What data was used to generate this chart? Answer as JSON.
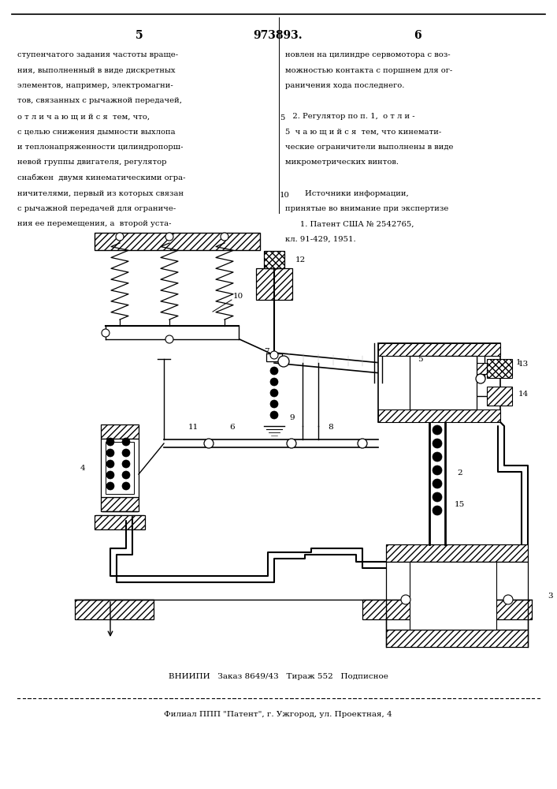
{
  "page_width": 7.07,
  "page_height": 10.0,
  "bg_color": "#ffffff",
  "header_num_left": "5",
  "header_title": "973893.",
  "header_num_right": "6",
  "text_left": [
    "ступенчатого задания частоты враще-",
    "ния, выполненный в виде дискретных",
    "элементов, например, электромагни-",
    "тов, связанных с рычажной передачей,",
    "о т л и ч а ю щ и й с я  тем, что,",
    "с целью снижения дымности выхлопа",
    "и теплонапряженности цилиндропорш-",
    "невой группы двигателя, регулятор",
    "снабжен  двумя кинематическими огра-",
    "ничителями, первый из которых связан",
    "с рычажной передачей для ограниче-",
    "ния ее перемещения, а  второй уста-"
  ],
  "text_right": [
    "новлен на цилиндре сервомотора с воз-",
    "можностью контакта с поршнем для ог-",
    "раничения хода последнего.",
    "",
    "   2. Регулятор по п. 1,  о т л и -",
    "5  ч а ю щ и й с я  тем, что кинемати-",
    "ческие ограничители выполнены в виде",
    "микрометрических винтов.",
    "",
    "        Источники информации,",
    "принятые во внимание при экспертизе",
    "      1. Патент США № 2542765,",
    "кл. 91-429, 1951."
  ],
  "bottom_text1": "ВНИИПИ   Заказ 8649/43   Тираж 552   Подписное",
  "bottom_text2": "Филиал ППП \"Патент\", г. Ужгород, ул. Проектная, 4"
}
